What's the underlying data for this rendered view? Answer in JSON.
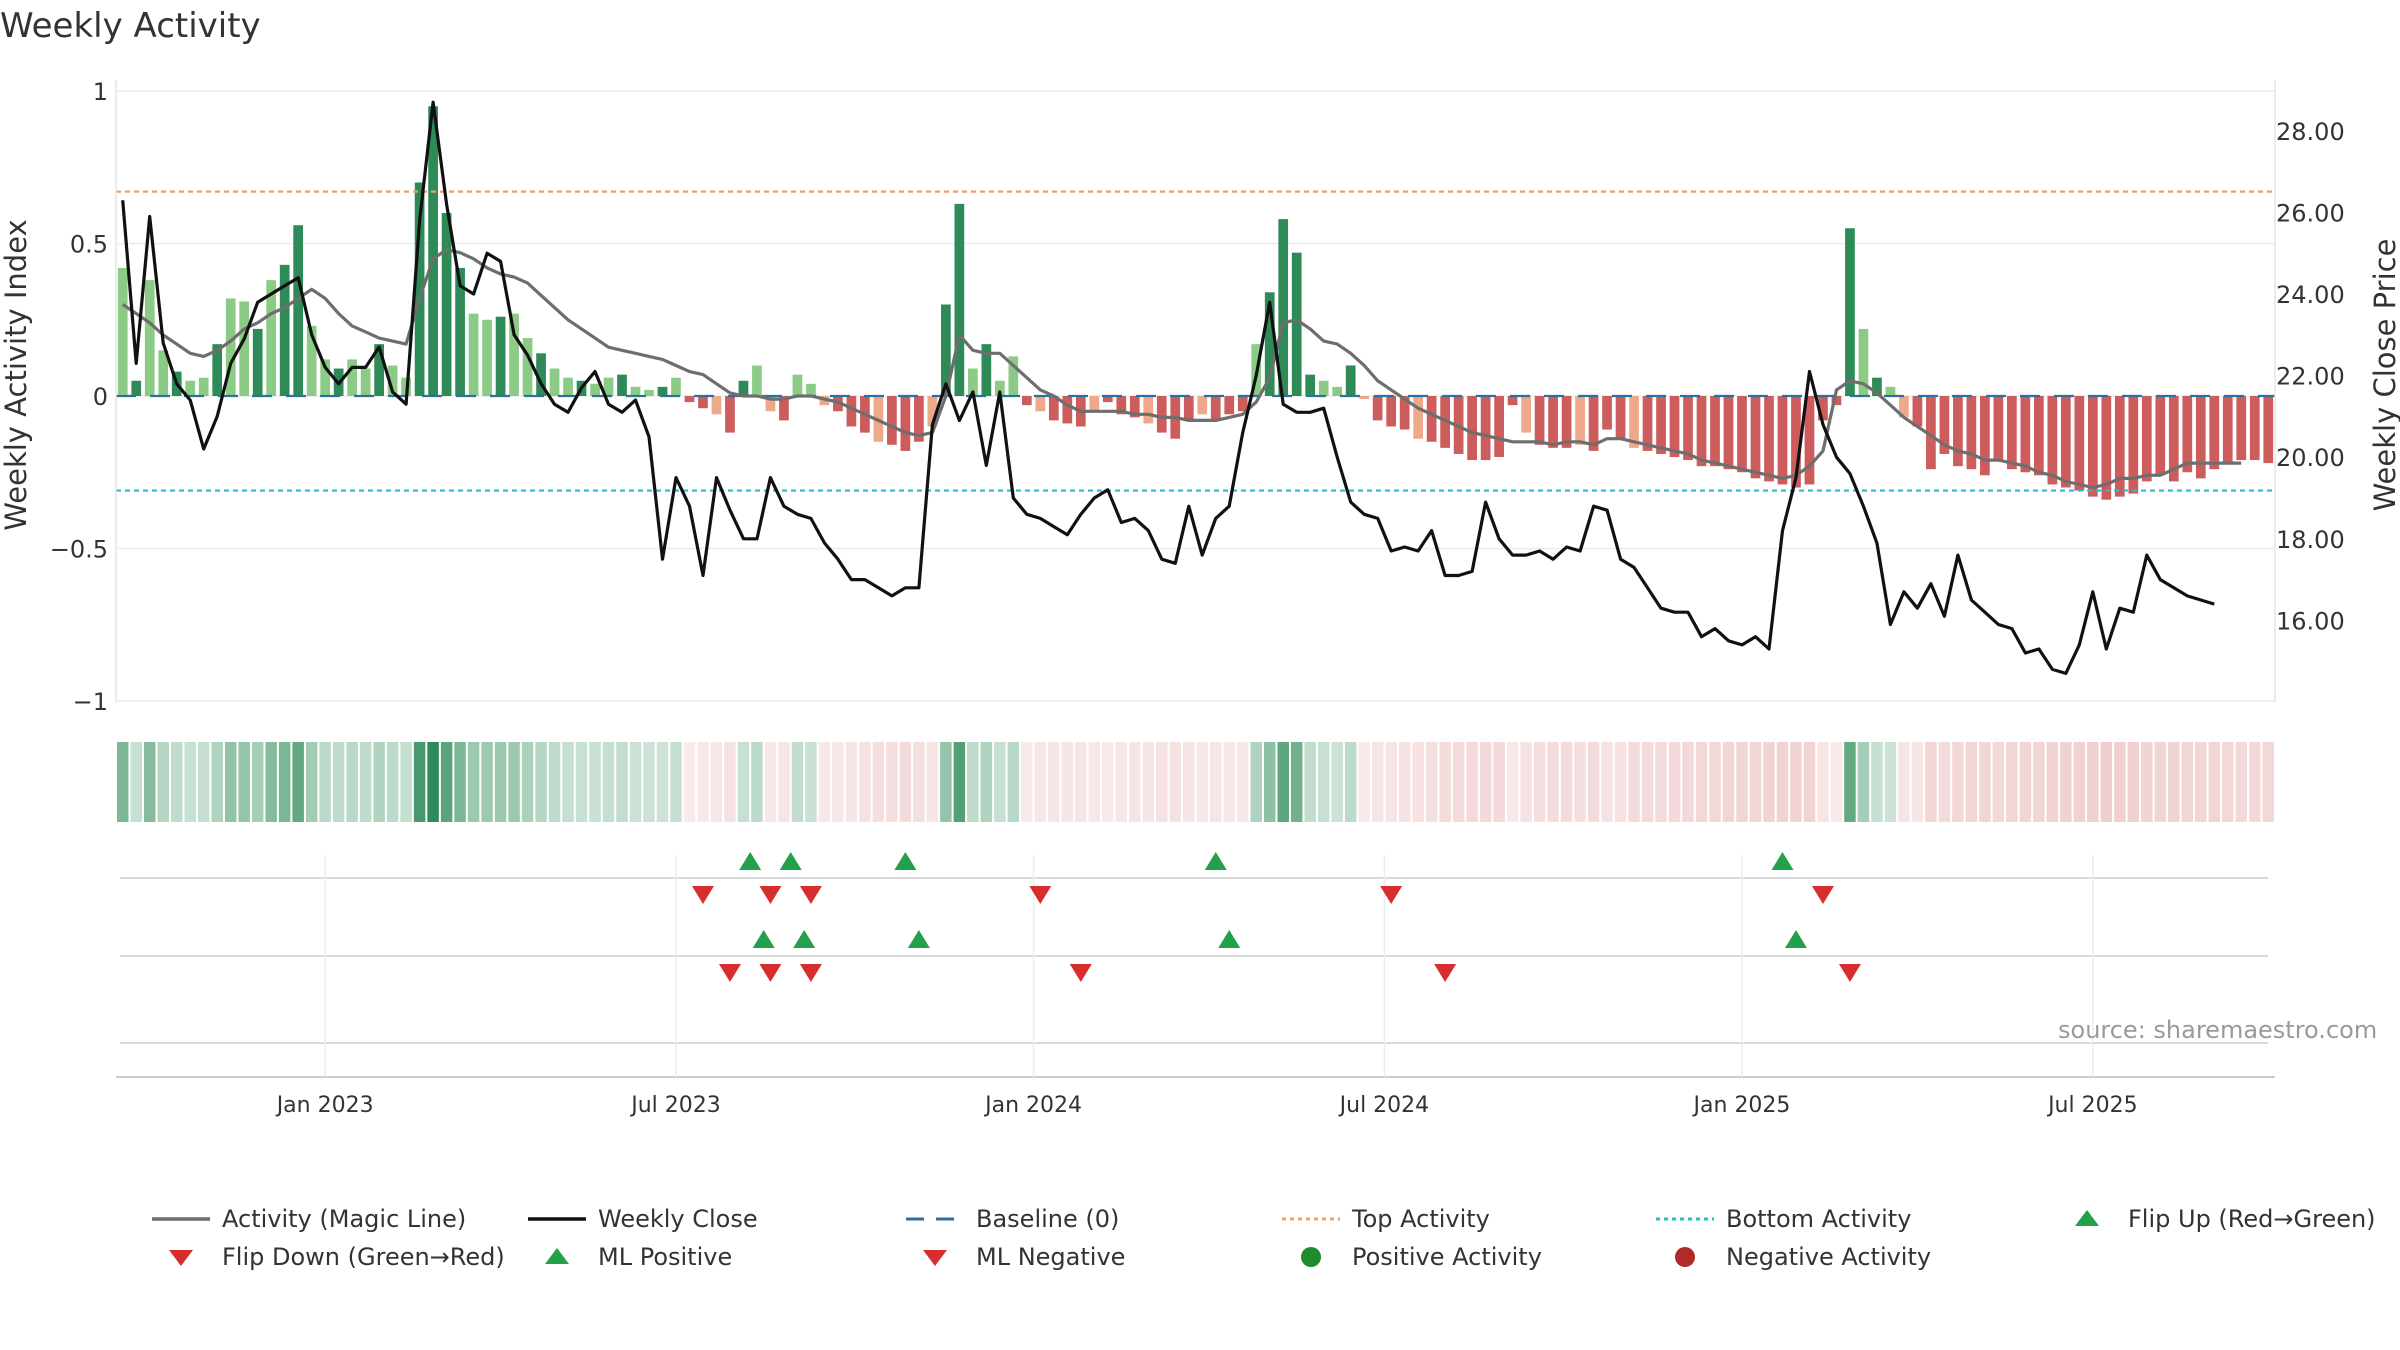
{
  "title": "Weekly Activity",
  "source": "source: sharemaestro.com",
  "legend": [
    {
      "label": "Activity (Magic Line)",
      "icon": "line",
      "color": "#6e6e6e"
    },
    {
      "label": "Weekly Close",
      "icon": "line",
      "color": "#111111"
    },
    {
      "label": "Baseline (0)",
      "icon": "dash",
      "color": "#2f6f9f"
    },
    {
      "label": "Top Activity",
      "icon": "dot-line",
      "color": "#f0a060"
    },
    {
      "label": "Bottom Activity",
      "icon": "dot-line",
      "color": "#2bbccc"
    },
    {
      "label": "Flip Up (Red→Green)",
      "icon": "triangle-up",
      "color": "#22a04a"
    },
    {
      "label": "Flip Down (Green→Red)",
      "icon": "triangle-down",
      "color": "#d62d2d"
    },
    {
      "label": "ML Positive",
      "icon": "triangle-up",
      "color": "#22a04a"
    },
    {
      "label": "ML Negative",
      "icon": "triangle-down",
      "color": "#d62d2d"
    },
    {
      "label": "Positive Activity",
      "icon": "circle",
      "color": "#1f8a2e"
    },
    {
      "label": "Negative Activity",
      "icon": "circle",
      "color": "#b02a2a"
    }
  ],
  "colors": {
    "pos_strong": "#2e8b57",
    "pos_light": "#8ccb86",
    "neg_strong": "#cd5c5c",
    "neg_light": "#eea88a",
    "magic": "#6e6e6e",
    "close": "#111111",
    "baseline": "#2f6f9f",
    "top": "#f0a060",
    "bottom": "#2bbccc",
    "up": "#22a04a",
    "down": "#d62d2d"
  },
  "chart_data": {
    "type": "bar+line",
    "title": "Weekly Activity",
    "ylabel_left": "Weekly Activity Index",
    "ylabel_right": "Weekly Close Price",
    "ylim_left": [
      -1.0,
      1.0
    ],
    "ylim_right": [
      14.0,
      29.0
    ],
    "yticks_left": [
      1,
      0.5,
      0,
      -0.5,
      -1
    ],
    "yticks_left_labels": [
      "1",
      "0.5",
      "0",
      "−0.5",
      "−1"
    ],
    "yticks_right": [
      28,
      26,
      24,
      22,
      20,
      18,
      16
    ],
    "yticks_right_labels": [
      "28.00",
      "26.00",
      "24.00",
      "22.00",
      "20.00",
      "18.00",
      "16.00"
    ],
    "x_ticks": [
      {
        "label": "Jan 2023",
        "week": 15
      },
      {
        "label": "Jul 2023",
        "week": 41
      },
      {
        "label": "Jan 2024",
        "week": 67.5
      },
      {
        "label": "Jul 2024",
        "week": 93.5
      },
      {
        "label": "Jan 2025",
        "week": 120
      },
      {
        "label": "Jul 2025",
        "week": 146
      }
    ],
    "top_activity": 0.67,
    "bottom_activity": -0.31,
    "baseline": 0,
    "activity": [
      0.42,
      0.05,
      0.38,
      0.15,
      0.08,
      0.05,
      0.06,
      0.17,
      0.32,
      0.31,
      0.22,
      0.38,
      0.43,
      0.56,
      0.23,
      0.12,
      0.09,
      0.12,
      0.09,
      0.17,
      0.1,
      0.06,
      0.7,
      0.95,
      0.6,
      0.42,
      0.27,
      0.25,
      0.26,
      0.27,
      0.19,
      0.14,
      0.09,
      0.06,
      0.05,
      0.04,
      0.06,
      0.07,
      0.03,
      0.02,
      0.03,
      0.06,
      -0.02,
      -0.04,
      -0.06,
      -0.12,
      0.05,
      0.1,
      -0.05,
      -0.08,
      0.07,
      0.04,
      -0.03,
      -0.05,
      -0.1,
      -0.12,
      -0.15,
      -0.16,
      -0.18,
      -0.15,
      -0.1,
      0.3,
      0.63,
      0.09,
      0.17,
      0.05,
      0.13,
      -0.03,
      -0.05,
      -0.08,
      -0.09,
      -0.1,
      -0.05,
      -0.02,
      -0.06,
      -0.07,
      -0.09,
      -0.12,
      -0.14,
      -0.08,
      -0.06,
      -0.08,
      -0.06,
      -0.05,
      0.17,
      0.34,
      0.58,
      0.47,
      0.07,
      0.05,
      0.03,
      0.1,
      -0.01,
      -0.08,
      -0.1,
      -0.11,
      -0.14,
      -0.15,
      -0.17,
      -0.19,
      -0.21,
      -0.21,
      -0.2,
      -0.03,
      -0.12,
      -0.16,
      -0.17,
      -0.17,
      -0.16,
      -0.18,
      -0.11,
      -0.14,
      -0.17,
      -0.18,
      -0.19,
      -0.2,
      -0.21,
      -0.23,
      -0.23,
      -0.24,
      -0.25,
      -0.27,
      -0.28,
      -0.29,
      -0.3,
      -0.29,
      -0.08,
      -0.03,
      0.55,
      0.22,
      0.06,
      0.03,
      -0.07,
      -0.1,
      -0.24,
      -0.19,
      -0.23,
      -0.24,
      -0.26,
      -0.21,
      -0.24,
      -0.25,
      -0.26,
      -0.29,
      -0.3,
      -0.31,
      -0.33,
      -0.34,
      -0.33,
      -0.32,
      -0.28,
      -0.26,
      -0.28,
      -0.25,
      -0.27,
      -0.24,
      -0.22,
      -0.21,
      -0.21,
      -0.22
    ],
    "magic_line": [
      0.3,
      0.27,
      0.24,
      0.2,
      0.17,
      0.14,
      0.13,
      0.15,
      0.18,
      0.22,
      0.24,
      0.27,
      0.29,
      0.32,
      0.35,
      0.32,
      0.27,
      0.23,
      0.21,
      0.19,
      0.18,
      0.17,
      0.32,
      0.45,
      0.48,
      0.47,
      0.45,
      0.42,
      0.4,
      0.39,
      0.37,
      0.33,
      0.29,
      0.25,
      0.22,
      0.19,
      0.16,
      0.15,
      0.14,
      0.13,
      0.12,
      0.1,
      0.08,
      0.07,
      0.04,
      0.01,
      0.0,
      0.0,
      -0.01,
      -0.01,
      0.0,
      0.0,
      -0.01,
      -0.02,
      -0.04,
      -0.06,
      -0.08,
      -0.1,
      -0.12,
      -0.13,
      -0.12,
      0.0,
      0.2,
      0.15,
      0.14,
      0.14,
      0.1,
      0.06,
      0.02,
      0.0,
      -0.03,
      -0.05,
      -0.05,
      -0.05,
      -0.05,
      -0.06,
      -0.06,
      -0.07,
      -0.07,
      -0.08,
      -0.08,
      -0.08,
      -0.07,
      -0.06,
      -0.02,
      0.06,
      0.24,
      0.25,
      0.22,
      0.18,
      0.17,
      0.14,
      0.1,
      0.05,
      0.02,
      -0.01,
      -0.04,
      -0.06,
      -0.08,
      -0.1,
      -0.12,
      -0.13,
      -0.14,
      -0.15,
      -0.15,
      -0.15,
      -0.16,
      -0.15,
      -0.15,
      -0.16,
      -0.14,
      -0.14,
      -0.15,
      -0.16,
      -0.17,
      -0.18,
      -0.19,
      -0.21,
      -0.22,
      -0.23,
      -0.24,
      -0.25,
      -0.26,
      -0.27,
      -0.26,
      -0.23,
      -0.18,
      0.02,
      0.05,
      0.04,
      0.01,
      -0.03,
      -0.07,
      -0.1,
      -0.13,
      -0.16,
      -0.18,
      -0.19,
      -0.21,
      -0.21,
      -0.22,
      -0.23,
      -0.25,
      -0.26,
      -0.28,
      -0.29,
      -0.3,
      -0.29,
      -0.27,
      -0.27,
      -0.26,
      -0.26,
      -0.24,
      -0.22,
      -0.22,
      -0.22,
      -0.22,
      -0.22
    ],
    "weekly_close": [
      26.3,
      22.3,
      25.9,
      22.8,
      21.8,
      21.4,
      20.2,
      21.0,
      22.3,
      22.9,
      23.8,
      24.0,
      24.2,
      24.4,
      23.0,
      22.2,
      21.8,
      22.2,
      22.2,
      22.7,
      21.6,
      21.3,
      25.8,
      28.7,
      26.2,
      24.2,
      24.0,
      25.0,
      24.8,
      23.0,
      22.5,
      21.8,
      21.3,
      21.1,
      21.7,
      22.1,
      21.3,
      21.1,
      21.4,
      20.5,
      17.5,
      19.5,
      18.8,
      17.1,
      19.5,
      18.7,
      18.0,
      18.0,
      19.5,
      18.8,
      18.6,
      18.5,
      17.9,
      17.5,
      17.0,
      17.0,
      16.8,
      16.6,
      16.8,
      16.8,
      20.8,
      21.8,
      20.9,
      21.6,
      19.8,
      21.6,
      19.0,
      18.6,
      18.5,
      18.3,
      18.1,
      18.6,
      19.0,
      19.2,
      18.4,
      18.5,
      18.2,
      17.5,
      17.4,
      18.8,
      17.6,
      18.5,
      18.8,
      20.6,
      22.0,
      23.8,
      21.3,
      21.1,
      21.1,
      21.2,
      20.0,
      18.9,
      18.6,
      18.5,
      17.7,
      17.8,
      17.7,
      18.2,
      17.1,
      17.1,
      17.2,
      18.9,
      18.0,
      17.6,
      17.6,
      17.7,
      17.5,
      17.8,
      17.7,
      18.8,
      18.7,
      17.5,
      17.3,
      16.8,
      16.3,
      16.2,
      16.2,
      15.6,
      15.8,
      15.5,
      15.4,
      15.6,
      15.3,
      18.2,
      19.5,
      22.1,
      20.8,
      20.0,
      19.6,
      18.8,
      17.9,
      15.9,
      16.7,
      16.3,
      16.9,
      16.1,
      17.6,
      16.5,
      16.2,
      15.9,
      15.8,
      15.2,
      15.3,
      14.8,
      14.7,
      15.4,
      16.7,
      15.3,
      16.3,
      16.2,
      17.6,
      17.0,
      16.8,
      16.6,
      16.5,
      16.4
    ],
    "flip_up_weeks": [
      46.5,
      49.5,
      58,
      81,
      123
    ],
    "flip_down_weeks": [
      43,
      48,
      51,
      68,
      94,
      126
    ],
    "ml_positive_weeks": [
      47.5,
      50.5,
      59,
      82,
      124
    ],
    "ml_negative_weeks": [
      45,
      48,
      51,
      71,
      98,
      128
    ]
  }
}
